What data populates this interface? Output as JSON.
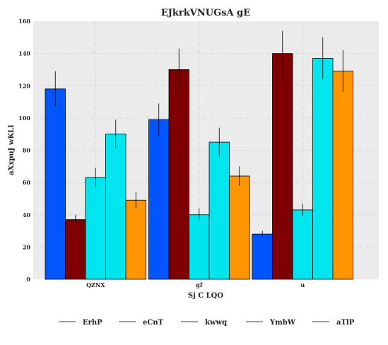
{
  "chart_data": {
    "type": "bar",
    "title": "EJkrkVNUGsA gE",
    "xlabel": "Sj C LQO",
    "ylabel": "aXxpuJ wKLI",
    "categories": [
      "QZNX",
      "gf",
      "u"
    ],
    "ylim": [
      0,
      160
    ],
    "yticks": [
      0,
      20,
      40,
      60,
      80,
      100,
      120,
      140,
      160
    ],
    "grid": true,
    "legend_position": "bottom",
    "series": [
      {
        "name": "ErhP",
        "color": "#0055ff",
        "values": [
          118,
          99,
          28
        ],
        "errors": [
          11,
          10,
          2
        ]
      },
      {
        "name": "eCnT",
        "color": "#7f0000",
        "values": [
          37,
          130,
          140
        ],
        "errors": [
          3,
          13,
          14
        ]
      },
      {
        "name": "kwwq",
        "color": "#00e5ee",
        "values": [
          63,
          40,
          43
        ],
        "errors": [
          6,
          4,
          4
        ]
      },
      {
        "name": "YmbW",
        "color": "#00e5ee",
        "values": [
          90,
          85,
          137
        ],
        "errors": [
          9,
          9,
          13
        ]
      },
      {
        "name": "aTlP",
        "color": "#ff9500",
        "values": [
          49,
          64,
          129
        ],
        "errors": [
          5,
          6,
          13
        ]
      }
    ]
  }
}
